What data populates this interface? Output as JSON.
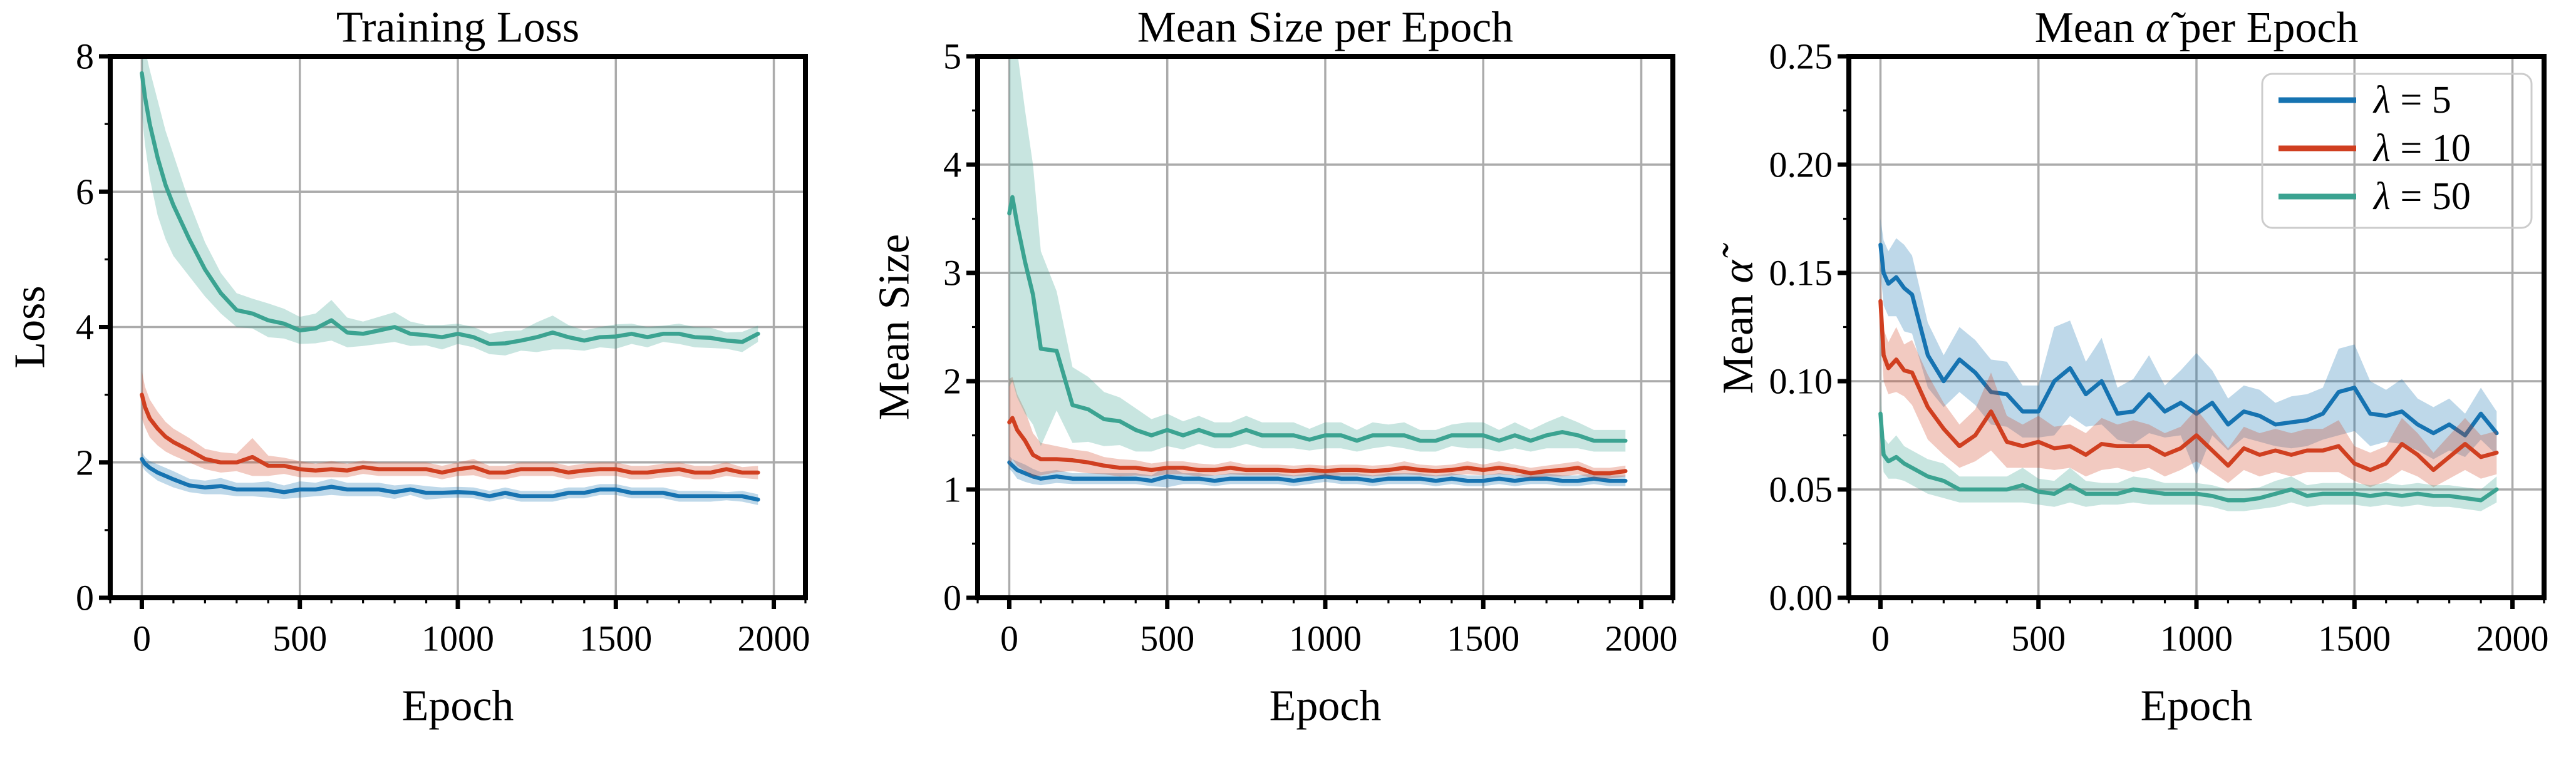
{
  "figure": {
    "background": "#ffffff",
    "description": "Three line subplots with shaded confidence bands"
  },
  "colors": {
    "lambda5": "#1673b1",
    "lambda10": "#d03f20",
    "lambda50": "#3ba391",
    "grid": "#ababab",
    "spine": "#000000",
    "legend_border": "#cccccc",
    "band_opacity": 0.28
  },
  "legend": {
    "position": "upper right",
    "subplot": 3,
    "entries": [
      {
        "label": "λ = 5",
        "color": "lambda5"
      },
      {
        "label": "λ = 10",
        "color": "lambda10"
      },
      {
        "label": "λ = 50",
        "color": "lambda50"
      }
    ]
  },
  "chart_data": [
    {
      "type": "line",
      "title": "Training Loss",
      "xlabel": "Epoch",
      "ylabel": "Loss",
      "xlim": [
        -100,
        2100
      ],
      "ylim": [
        0,
        8
      ],
      "grid": true,
      "xtick_values": [
        0,
        500,
        1000,
        1500,
        2000
      ],
      "xtick_labels": [
        "0",
        "500",
        "1000",
        "1500",
        "2000"
      ],
      "ytick_values": [
        0,
        2,
        4,
        6,
        8
      ],
      "ytick_labels": [
        "0",
        "2",
        "4",
        "6",
        "8"
      ],
      "minor_x_step": 100,
      "minor_y_step": 1,
      "legend": false,
      "x": [
        0,
        10,
        25,
        50,
        75,
        100,
        150,
        200,
        250,
        300,
        350,
        400,
        450,
        500,
        550,
        600,
        650,
        700,
        750,
        800,
        850,
        900,
        950,
        1000,
        1050,
        1100,
        1150,
        1200,
        1250,
        1300,
        1350,
        1400,
        1450,
        1500,
        1550,
        1600,
        1650,
        1700,
        1750,
        1800,
        1850,
        1900,
        1950
      ],
      "series": [
        {
          "name": "λ = 5",
          "color": "lambda5",
          "y": [
            2.05,
            1.98,
            1.92,
            1.85,
            1.8,
            1.75,
            1.66,
            1.63,
            1.65,
            1.6,
            1.6,
            1.6,
            1.56,
            1.6,
            1.6,
            1.64,
            1.6,
            1.6,
            1.6,
            1.56,
            1.6,
            1.55,
            1.55,
            1.56,
            1.55,
            1.5,
            1.55,
            1.5,
            1.5,
            1.5,
            1.55,
            1.55,
            1.6,
            1.6,
            1.55,
            1.55,
            1.55,
            1.5,
            1.5,
            1.5,
            1.5,
            1.5,
            1.45
          ],
          "band_halfwidth": [
            0.1,
            0.1,
            0.1,
            0.12,
            0.12,
            0.12,
            0.1,
            0.1,
            0.12,
            0.1,
            0.1,
            0.12,
            0.1,
            0.12,
            0.1,
            0.12,
            0.1,
            0.1,
            0.1,
            0.1,
            0.08,
            0.1,
            0.08,
            0.08,
            0.08,
            0.08,
            0.08,
            0.08,
            0.08,
            0.08,
            0.08,
            0.08,
            0.08,
            0.08,
            0.08,
            0.08,
            0.08,
            0.08,
            0.08,
            0.08,
            0.06,
            0.08,
            0.08
          ]
        },
        {
          "name": "λ = 10",
          "color": "lambda10",
          "y": [
            3.0,
            2.82,
            2.65,
            2.5,
            2.38,
            2.3,
            2.18,
            2.05,
            2.0,
            2.0,
            2.08,
            1.95,
            1.95,
            1.9,
            1.88,
            1.9,
            1.88,
            1.93,
            1.9,
            1.9,
            1.9,
            1.9,
            1.85,
            1.9,
            1.93,
            1.85,
            1.85,
            1.9,
            1.9,
            1.9,
            1.85,
            1.88,
            1.9,
            1.9,
            1.85,
            1.85,
            1.88,
            1.9,
            1.85,
            1.85,
            1.9,
            1.85,
            1.85
          ],
          "band_halfwidth": [
            0.35,
            0.3,
            0.28,
            0.25,
            0.22,
            0.2,
            0.18,
            0.15,
            0.15,
            0.13,
            0.28,
            0.15,
            0.12,
            0.12,
            0.1,
            0.12,
            0.1,
            0.1,
            0.1,
            0.1,
            0.1,
            0.1,
            0.1,
            0.1,
            0.12,
            0.1,
            0.1,
            0.1,
            0.1,
            0.1,
            0.1,
            0.1,
            0.1,
            0.1,
            0.1,
            0.1,
            0.1,
            0.1,
            0.1,
            0.1,
            0.1,
            0.08,
            0.1
          ]
        },
        {
          "name": "λ = 50",
          "color": "lambda50",
          "y": [
            7.75,
            7.4,
            7.0,
            6.5,
            6.1,
            5.8,
            5.3,
            4.85,
            4.5,
            4.25,
            4.2,
            4.1,
            4.05,
            3.95,
            3.98,
            4.1,
            3.92,
            3.9,
            3.95,
            4.0,
            3.9,
            3.88,
            3.85,
            3.9,
            3.85,
            3.75,
            3.76,
            3.8,
            3.85,
            3.92,
            3.85,
            3.8,
            3.85,
            3.86,
            3.9,
            3.85,
            3.9,
            3.9,
            3.85,
            3.84,
            3.8,
            3.78,
            3.9
          ],
          "band_halfwidth": [
            0.6,
            0.7,
            0.8,
            0.85,
            0.8,
            0.75,
            0.55,
            0.4,
            0.3,
            0.25,
            0.22,
            0.25,
            0.22,
            0.2,
            0.22,
            0.3,
            0.22,
            0.18,
            0.2,
            0.22,
            0.18,
            0.15,
            0.18,
            0.15,
            0.15,
            0.15,
            0.18,
            0.15,
            0.22,
            0.25,
            0.18,
            0.15,
            0.15,
            0.18,
            0.15,
            0.15,
            0.12,
            0.15,
            0.15,
            0.15,
            0.12,
            0.15,
            0.12
          ]
        }
      ]
    },
    {
      "type": "line",
      "title": "Mean Size per Epoch",
      "xlabel": "Epoch",
      "ylabel": "Mean Size",
      "xlim": [
        -100,
        2100
      ],
      "ylim": [
        0,
        5
      ],
      "grid": true,
      "xtick_values": [
        0,
        500,
        1000,
        1500,
        2000
      ],
      "xtick_labels": [
        "0",
        "500",
        "1000",
        "1500",
        "2000"
      ],
      "ytick_values": [
        0,
        1,
        2,
        3,
        4,
        5
      ],
      "ytick_labels": [
        "0",
        "1",
        "2",
        "3",
        "4",
        "5"
      ],
      "minor_x_step": 100,
      "minor_y_step": 0.5,
      "legend": false,
      "x": [
        0,
        10,
        25,
        50,
        75,
        100,
        150,
        200,
        250,
        300,
        350,
        400,
        450,
        500,
        550,
        600,
        650,
        700,
        750,
        800,
        850,
        900,
        950,
        1000,
        1050,
        1100,
        1150,
        1200,
        1250,
        1300,
        1350,
        1400,
        1450,
        1500,
        1550,
        1600,
        1650,
        1700,
        1750,
        1800,
        1850,
        1900,
        1950
      ],
      "series": [
        {
          "name": "λ = 5",
          "color": "lambda5",
          "y": [
            1.25,
            1.22,
            1.18,
            1.15,
            1.12,
            1.1,
            1.12,
            1.1,
            1.1,
            1.1,
            1.1,
            1.1,
            1.08,
            1.12,
            1.1,
            1.1,
            1.08,
            1.1,
            1.1,
            1.1,
            1.1,
            1.08,
            1.1,
            1.12,
            1.1,
            1.1,
            1.08,
            1.1,
            1.1,
            1.1,
            1.08,
            1.1,
            1.08,
            1.08,
            1.1,
            1.08,
            1.1,
            1.1,
            1.08,
            1.08,
            1.1,
            1.08,
            1.08
          ],
          "band_halfwidth": [
            0.06,
            0.06,
            0.08,
            0.08,
            0.07,
            0.06,
            0.06,
            0.05,
            0.05,
            0.05,
            0.05,
            0.05,
            0.05,
            0.1,
            0.05,
            0.05,
            0.05,
            0.05,
            0.05,
            0.05,
            0.05,
            0.05,
            0.05,
            0.05,
            0.05,
            0.05,
            0.05,
            0.05,
            0.05,
            0.05,
            0.05,
            0.05,
            0.05,
            0.05,
            0.05,
            0.05,
            0.05,
            0.05,
            0.05,
            0.05,
            0.05,
            0.05,
            0.05
          ]
        },
        {
          "name": "λ = 10",
          "color": "lambda10",
          "y": [
            1.62,
            1.66,
            1.55,
            1.45,
            1.32,
            1.28,
            1.28,
            1.27,
            1.25,
            1.22,
            1.2,
            1.2,
            1.18,
            1.2,
            1.2,
            1.18,
            1.18,
            1.2,
            1.18,
            1.18,
            1.18,
            1.17,
            1.18,
            1.17,
            1.18,
            1.18,
            1.17,
            1.18,
            1.2,
            1.18,
            1.17,
            1.18,
            1.2,
            1.18,
            1.2,
            1.18,
            1.15,
            1.17,
            1.18,
            1.2,
            1.15,
            1.15,
            1.17
          ],
          "band_halfwidth": [
            0.4,
            0.38,
            0.33,
            0.28,
            0.2,
            0.15,
            0.12,
            0.1,
            0.1,
            0.08,
            0.08,
            0.07,
            0.06,
            0.06,
            0.06,
            0.06,
            0.05,
            0.06,
            0.05,
            0.05,
            0.05,
            0.05,
            0.05,
            0.05,
            0.05,
            0.05,
            0.05,
            0.05,
            0.06,
            0.05,
            0.05,
            0.05,
            0.06,
            0.05,
            0.06,
            0.05,
            0.05,
            0.05,
            0.06,
            0.06,
            0.05,
            0.05,
            0.05
          ]
        },
        {
          "name": "λ = 50",
          "color": "lambda50",
          "y": [
            3.55,
            3.7,
            3.45,
            3.1,
            2.8,
            2.3,
            2.28,
            1.78,
            1.74,
            1.65,
            1.63,
            1.55,
            1.5,
            1.55,
            1.5,
            1.55,
            1.5,
            1.5,
            1.55,
            1.5,
            1.5,
            1.5,
            1.46,
            1.5,
            1.5,
            1.45,
            1.5,
            1.5,
            1.5,
            1.45,
            1.45,
            1.5,
            1.5,
            1.5,
            1.45,
            1.5,
            1.45,
            1.5,
            1.53,
            1.5,
            1.45,
            1.45,
            1.45
          ],
          "band_halfwidth": [
            1.6,
            1.7,
            1.6,
            1.4,
            1.2,
            0.9,
            0.55,
            0.35,
            0.3,
            0.25,
            0.22,
            0.2,
            0.15,
            0.15,
            0.13,
            0.13,
            0.12,
            0.12,
            0.13,
            0.12,
            0.12,
            0.12,
            0.1,
            0.12,
            0.12,
            0.1,
            0.12,
            0.1,
            0.12,
            0.1,
            0.1,
            0.1,
            0.12,
            0.12,
            0.1,
            0.12,
            0.1,
            0.12,
            0.15,
            0.12,
            0.1,
            0.1,
            0.1
          ]
        }
      ]
    },
    {
      "type": "line",
      "title": "Mean α̃ per Epoch",
      "xlabel": "Epoch",
      "ylabel": "Mean α̃",
      "xlim": [
        -100,
        2100
      ],
      "ylim": [
        0,
        0.25
      ],
      "grid": true,
      "xtick_values": [
        0,
        500,
        1000,
        1500,
        2000
      ],
      "xtick_labels": [
        "0",
        "500",
        "1000",
        "1500",
        "2000"
      ],
      "ytick_values": [
        0,
        0.05,
        0.1,
        0.15,
        0.2,
        0.25
      ],
      "ytick_labels": [
        "0.00",
        "0.05",
        "0.10",
        "0.15",
        "0.20",
        "0.25"
      ],
      "minor_x_step": 100,
      "minor_y_step": 0.025,
      "legend": true,
      "x": [
        0,
        10,
        25,
        50,
        75,
        100,
        150,
        200,
        250,
        300,
        350,
        400,
        450,
        500,
        550,
        600,
        650,
        700,
        750,
        800,
        850,
        900,
        950,
        1000,
        1050,
        1100,
        1150,
        1200,
        1250,
        1300,
        1350,
        1400,
        1450,
        1500,
        1550,
        1600,
        1650,
        1700,
        1750,
        1800,
        1850,
        1900,
        1950
      ],
      "series": [
        {
          "name": "λ = 5",
          "color": "lambda5",
          "y": [
            0.163,
            0.15,
            0.145,
            0.148,
            0.143,
            0.14,
            0.112,
            0.1,
            0.11,
            0.104,
            0.095,
            0.094,
            0.086,
            0.086,
            0.1,
            0.106,
            0.094,
            0.1,
            0.085,
            0.086,
            0.094,
            0.086,
            0.09,
            0.085,
            0.09,
            0.08,
            0.086,
            0.084,
            0.08,
            0.081,
            0.082,
            0.085,
            0.095,
            0.097,
            0.085,
            0.084,
            0.086,
            0.08,
            0.076,
            0.08,
            0.075,
            0.085,
            0.076
          ],
          "band_halfwidth": [
            0.012,
            0.015,
            0.015,
            0.018,
            0.02,
            0.018,
            0.015,
            0.012,
            0.015,
            0.015,
            0.015,
            0.015,
            0.012,
            0.012,
            0.025,
            0.022,
            0.015,
            0.02,
            0.012,
            0.015,
            0.018,
            0.012,
            0.015,
            0.028,
            0.015,
            0.012,
            0.012,
            0.012,
            0.01,
            0.012,
            0.012,
            0.012,
            0.02,
            0.02,
            0.015,
            0.012,
            0.015,
            0.012,
            0.012,
            0.012,
            0.01,
            0.012,
            0.01
          ]
        },
        {
          "name": "λ = 10",
          "color": "lambda10",
          "y": [
            0.137,
            0.112,
            0.106,
            0.11,
            0.105,
            0.104,
            0.088,
            0.078,
            0.07,
            0.075,
            0.086,
            0.072,
            0.07,
            0.072,
            0.069,
            0.07,
            0.066,
            0.071,
            0.07,
            0.07,
            0.07,
            0.066,
            0.069,
            0.075,
            0.068,
            0.061,
            0.069,
            0.066,
            0.068,
            0.066,
            0.068,
            0.068,
            0.07,
            0.062,
            0.059,
            0.062,
            0.071,
            0.066,
            0.059,
            0.065,
            0.071,
            0.065,
            0.067
          ],
          "band_halfwidth": [
            0.012,
            0.012,
            0.012,
            0.015,
            0.012,
            0.015,
            0.015,
            0.012,
            0.01,
            0.012,
            0.018,
            0.012,
            0.01,
            0.012,
            0.01,
            0.01,
            0.01,
            0.012,
            0.01,
            0.012,
            0.01,
            0.01,
            0.01,
            0.012,
            0.01,
            0.008,
            0.01,
            0.01,
            0.01,
            0.01,
            0.01,
            0.01,
            0.012,
            0.008,
            0.008,
            0.008,
            0.012,
            0.01,
            0.008,
            0.01,
            0.012,
            0.01,
            0.01
          ]
        },
        {
          "name": "λ = 50",
          "color": "lambda50",
          "y": [
            0.085,
            0.066,
            0.063,
            0.065,
            0.062,
            0.06,
            0.056,
            0.054,
            0.05,
            0.05,
            0.05,
            0.05,
            0.052,
            0.049,
            0.048,
            0.052,
            0.048,
            0.048,
            0.048,
            0.05,
            0.049,
            0.048,
            0.048,
            0.048,
            0.047,
            0.045,
            0.045,
            0.046,
            0.048,
            0.05,
            0.047,
            0.048,
            0.048,
            0.048,
            0.047,
            0.048,
            0.047,
            0.048,
            0.047,
            0.047,
            0.046,
            0.045,
            0.05
          ],
          "band_halfwidth": [
            0.01,
            0.008,
            0.008,
            0.01,
            0.008,
            0.008,
            0.008,
            0.008,
            0.006,
            0.006,
            0.006,
            0.006,
            0.008,
            0.006,
            0.006,
            0.008,
            0.006,
            0.005,
            0.005,
            0.006,
            0.006,
            0.005,
            0.005,
            0.005,
            0.005,
            0.005,
            0.005,
            0.005,
            0.006,
            0.006,
            0.005,
            0.005,
            0.005,
            0.005,
            0.005,
            0.005,
            0.005,
            0.005,
            0.005,
            0.005,
            0.005,
            0.005,
            0.006
          ]
        }
      ]
    }
  ]
}
